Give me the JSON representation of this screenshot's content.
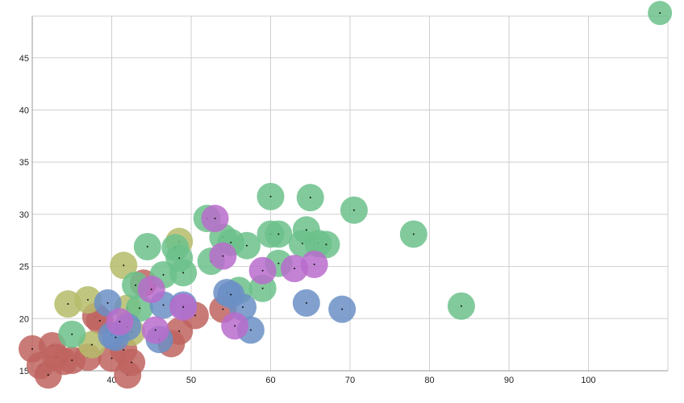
{
  "chart_data": {
    "type": "scatter",
    "title": "",
    "xlabel": "",
    "ylabel": "",
    "xlim": [
      30,
      110
    ],
    "ylim": [
      15,
      49
    ],
    "x_ticks": [
      40,
      50,
      60,
      70,
      80,
      90,
      100
    ],
    "y_ticks": [
      15,
      20,
      25,
      30,
      35,
      40,
      45
    ],
    "grid": true,
    "series": [
      {
        "color": "#c0645f",
        "points": [
          [
            30,
            17.1
          ],
          [
            31,
            15.5
          ],
          [
            32,
            14.6
          ],
          [
            32.5,
            17.4
          ],
          [
            33,
            16.3
          ],
          [
            34,
            15.9
          ],
          [
            35,
            16.0
          ],
          [
            37,
            16.3
          ],
          [
            38,
            20.2
          ],
          [
            38.5,
            19.8
          ],
          [
            40,
            16.2
          ],
          [
            41.5,
            17.0
          ],
          [
            42,
            14.6
          ],
          [
            42.5,
            15.8
          ],
          [
            44,
            23.4
          ],
          [
            47.5,
            17.6
          ],
          [
            48.5,
            18.8
          ],
          [
            50.5,
            20.3
          ],
          [
            54,
            20.9
          ]
        ]
      },
      {
        "color": "#b5bc6a",
        "points": [
          [
            34.5,
            21.4
          ],
          [
            37,
            21.8
          ],
          [
            37.5,
            17.5
          ],
          [
            41.5,
            25.1
          ],
          [
            42,
            21.0
          ],
          [
            42.5,
            18.7
          ],
          [
            48.5,
            27.4
          ]
        ]
      },
      {
        "color": "#6cc18b",
        "points": [
          [
            35,
            18.5
          ],
          [
            43,
            23.2
          ],
          [
            43.5,
            21.0
          ],
          [
            44.5,
            26.9
          ],
          [
            46.5,
            24.2
          ],
          [
            48,
            26.8
          ],
          [
            48.5,
            25.8
          ],
          [
            49,
            24.4
          ],
          [
            52,
            29.6
          ],
          [
            52.5,
            25.5
          ],
          [
            54,
            27.8
          ],
          [
            55,
            27.3
          ],
          [
            56,
            22.7
          ],
          [
            57,
            27.0
          ],
          [
            59,
            22.9
          ],
          [
            60,
            31.7
          ],
          [
            60,
            28.1
          ],
          [
            61,
            28.1
          ],
          [
            61,
            25.3
          ],
          [
            64,
            27.2
          ],
          [
            64.5,
            28.5
          ],
          [
            65,
            31.6
          ],
          [
            66,
            27.2
          ],
          [
            67,
            27.1
          ],
          [
            70.5,
            30.4
          ],
          [
            78,
            28.1
          ],
          [
            84,
            21.2
          ],
          [
            109,
            49.3
          ]
        ]
      },
      {
        "color": "#6b8fc6",
        "points": [
          [
            39.5,
            21.5
          ],
          [
            40,
            18.4
          ],
          [
            40.5,
            18.2
          ],
          [
            42,
            19.2
          ],
          [
            46,
            18.0
          ],
          [
            46.5,
            21.3
          ],
          [
            49,
            21.3
          ],
          [
            54.5,
            22.5
          ],
          [
            55,
            22.3
          ],
          [
            56.5,
            21.1
          ],
          [
            57.5,
            18.9
          ],
          [
            64.5,
            21.5
          ],
          [
            69,
            20.9
          ]
        ]
      },
      {
        "color": "#b86ccc",
        "points": [
          [
            41,
            19.7
          ],
          [
            45,
            22.8
          ],
          [
            45.5,
            18.9
          ],
          [
            49,
            21.1
          ],
          [
            53,
            29.6
          ],
          [
            54,
            26.0
          ],
          [
            55.5,
            19.3
          ],
          [
            59,
            24.6
          ],
          [
            63,
            24.8
          ],
          [
            65.5,
            25.2
          ]
        ]
      }
    ]
  }
}
